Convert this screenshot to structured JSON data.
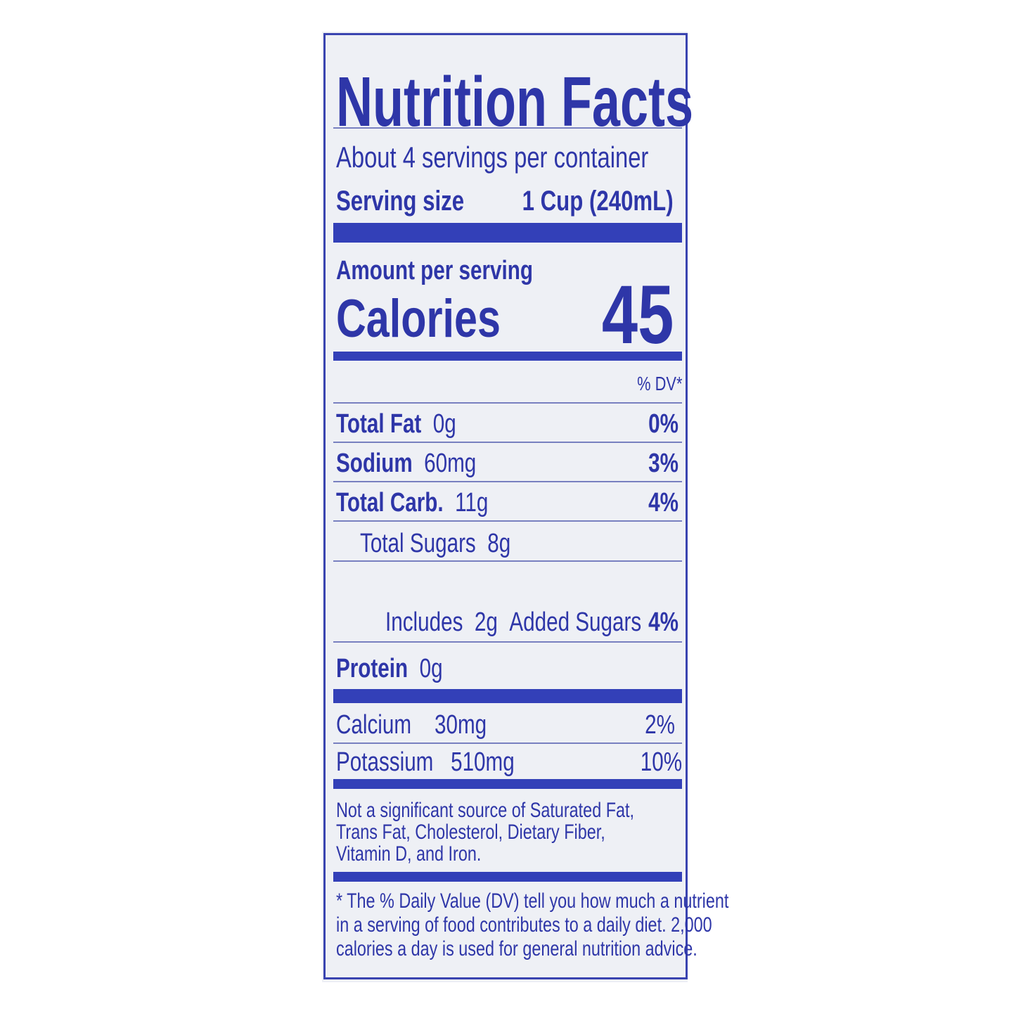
{
  "title": "Nutrition Facts",
  "servings_per_container": "About 4 servings per container",
  "serving_size": {
    "label": "Serving size",
    "value": "1 Cup (240mL)"
  },
  "amount_per_serving": "Amount per serving",
  "calories": {
    "label": "Calories",
    "value": "45"
  },
  "dv_header": "% DV*",
  "nutrients": [
    {
      "name": "Total Fat",
      "amount": "0g",
      "dv": "0%"
    },
    {
      "name": "Sodium",
      "amount": "60mg",
      "dv": "3%"
    },
    {
      "name": "Total Carb.",
      "amount": "11g",
      "dv": "4%"
    },
    {
      "name": "Total Sugars",
      "amount": "8g",
      "dv": ""
    },
    {
      "name": "Includes",
      "amount": "2g",
      "suffix": "Added Sugars",
      "dv": "4%"
    },
    {
      "name": "Protein",
      "amount": "0g",
      "dv": ""
    }
  ],
  "minerals": [
    {
      "name": "Calcium",
      "amount": "30mg",
      "dv": "2%"
    },
    {
      "name": "Potassium",
      "amount": "510mg",
      "dv": "10%"
    }
  ],
  "not_significant": [
    "Not a significant source of Saturated Fat,",
    "Trans Fat, Cholesterol, Dietary Fiber,",
    "Vitamin D, and Iron."
  ],
  "footnote": [
    "* The % Daily Value (DV) tell you how much a nutrient",
    "in a serving of food contributes to a daily diet. 2,000",
    "calories a day is used for general nutrition advice."
  ],
  "colors": {
    "ink": "#2e36a8",
    "background": "#eef0f5"
  }
}
